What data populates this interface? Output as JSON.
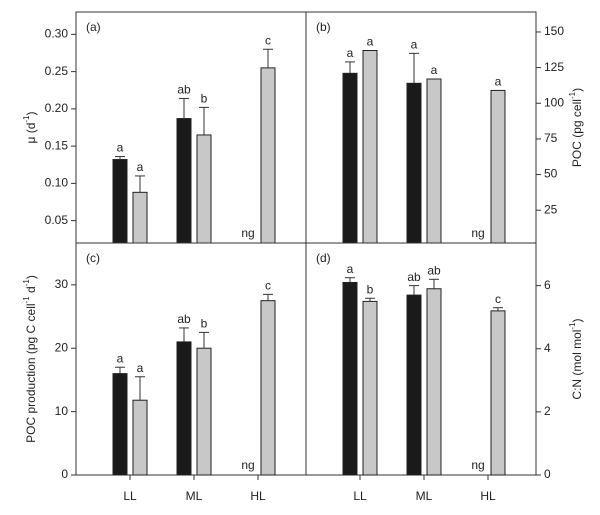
{
  "chart_data": [
    {
      "type": "bar",
      "title": "(a)",
      "yaxis_side": "left",
      "ylabel": [
        "μ (d",
        "-1",
        ")"
      ],
      "ylim": [
        0.02,
        0.33
      ],
      "yticks": [
        0.05,
        0.1,
        0.15,
        0.2,
        0.25,
        0.3
      ],
      "ytick_labels": [
        "0.05",
        "0.10",
        "0.15",
        "0.20",
        "0.25",
        "0.30"
      ],
      "series": [
        {
          "color": "#1a1a1a",
          "values": [
            0.132,
            0.187,
            null
          ],
          "errors": [
            0.004,
            0.027,
            null
          ],
          "letters": [
            "a",
            "ab",
            null
          ]
        },
        {
          "color": "#c8c8c8",
          "values": [
            0.088,
            0.165,
            0.255
          ],
          "errors": [
            0.022,
            0.037,
            0.025
          ],
          "letters": [
            "a",
            "b",
            "c"
          ]
        }
      ],
      "annotations": [
        {
          "text": "ng",
          "category": 2
        }
      ]
    },
    {
      "type": "bar",
      "title": "(b)",
      "yaxis_side": "right",
      "ylabel": [
        "POC (pg cell",
        "-1",
        ")"
      ],
      "ylim": [
        2,
        164
      ],
      "yticks": [
        25,
        50,
        75,
        100,
        125,
        150
      ],
      "series": [
        {
          "color": "#1a1a1a",
          "values": [
            121,
            114,
            null
          ],
          "errors": [
            8,
            21,
            null
          ],
          "letters": [
            "a",
            "a",
            null
          ]
        },
        {
          "color": "#c8c8c8",
          "values": [
            137,
            117,
            109
          ],
          "errors": [
            null,
            null,
            null
          ],
          "letters": [
            "a",
            "a",
            "a"
          ]
        }
      ],
      "annotations": [
        {
          "text": "ng",
          "category": 2
        }
      ]
    },
    {
      "type": "bar",
      "title": "(c)",
      "yaxis_side": "left",
      "ylabel": [
        "POC production (pg C cell",
        "-1",
        " d",
        "-1",
        ")"
      ],
      "categories": [
        "LL",
        "ML",
        "HL"
      ],
      "ylim": [
        0,
        36.6
      ],
      "yticks": [
        0,
        10,
        20,
        30
      ],
      "series": [
        {
          "color": "#1a1a1a",
          "values": [
            16,
            21,
            null
          ],
          "errors": [
            1,
            2.2,
            null
          ],
          "letters": [
            "a",
            "ab",
            null
          ]
        },
        {
          "color": "#c8c8c8",
          "values": [
            11.8,
            20,
            27.5
          ],
          "errors": [
            3.7,
            2.5,
            1
          ],
          "letters": [
            "a",
            "b",
            "c"
          ]
        }
      ],
      "annotations": [
        {
          "text": "ng",
          "category": 2
        }
      ]
    },
    {
      "type": "bar",
      "title": "(d)",
      "yaxis_side": "right",
      "ylabel": [
        "C:N (mol mol",
        "-1",
        ")"
      ],
      "categories": [
        "LL",
        "ML",
        "HL"
      ],
      "ylim": [
        0,
        7.35
      ],
      "yticks": [
        0,
        2,
        4,
        6
      ],
      "series": [
        {
          "color": "#1a1a1a",
          "values": [
            6.1,
            5.7,
            null
          ],
          "errors": [
            0.15,
            0.3,
            null
          ],
          "letters": [
            "a",
            "ab",
            null
          ]
        },
        {
          "color": "#c8c8c8",
          "values": [
            5.5,
            5.9,
            5.2
          ],
          "errors": [
            0.1,
            0.3,
            0.1
          ],
          "letters": [
            "b",
            "ab",
            "c"
          ]
        }
      ],
      "annotations": [
        {
          "text": "ng",
          "category": 2
        }
      ]
    }
  ]
}
